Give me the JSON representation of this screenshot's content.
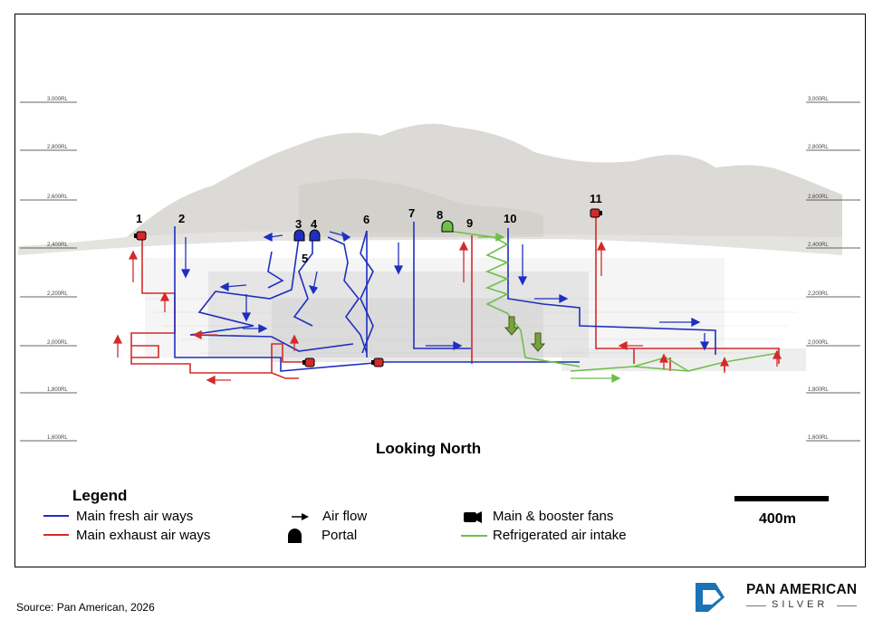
{
  "levels": [
    "3,000RL",
    "2,800RL",
    "2,600RL",
    "2,400RL",
    "2,200RL",
    "2,000RL",
    "1,800RL",
    "1,600RL"
  ],
  "workings": [
    "1",
    "2",
    "3",
    "4",
    "5",
    "6",
    "7",
    "8",
    "9",
    "10",
    "11"
  ],
  "view_label": "Looking North",
  "legend": {
    "title": "Legend",
    "fresh": "Main fresh air ways",
    "exhaust": "Main exhaust air ways",
    "airflow": "Air flow",
    "portal": "Portal",
    "fans": "Main & booster fans",
    "refrigerated": "Refrigerated air intake"
  },
  "scale_label": "400m",
  "source": "Source: Pan American, 2026",
  "logo": {
    "name": "PAN AMERICAN",
    "sub": "SILVER"
  },
  "colors": {
    "fresh": "#1f2fbf",
    "exhaust": "#d42a2a",
    "refrigerated": "#6fbf4a",
    "mountain": "#d8d6d2"
  }
}
